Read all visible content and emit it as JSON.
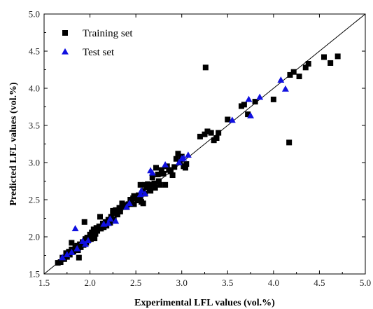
{
  "chart_data": {
    "type": "scatter",
    "xlabel": "Experimental LFL values (vol.%)",
    "ylabel": "Predicted LFL values  (vol.%)",
    "xlim": [
      1.5,
      5.0
    ],
    "ylim": [
      1.5,
      5.0
    ],
    "xticks": [
      "1.5",
      "2.0",
      "2.5",
      "3.0",
      "3.5",
      "4.0",
      "4.5",
      "5.0"
    ],
    "yticks": [
      "1.5",
      "2.0",
      "2.5",
      "3.0",
      "3.5",
      "4.0",
      "4.5",
      "5.0"
    ],
    "grid": false,
    "legend_position": "top-left",
    "reference_line": {
      "from": [
        1.5,
        1.5
      ],
      "to": [
        5.0,
        5.0
      ]
    },
    "series": [
      {
        "name": "Training set",
        "marker": "square",
        "color": "#000000",
        "points": [
          [
            1.65,
            1.65
          ],
          [
            1.68,
            1.66
          ],
          [
            1.7,
            1.72
          ],
          [
            1.72,
            1.7
          ],
          [
            1.74,
            1.78
          ],
          [
            1.75,
            1.73
          ],
          [
            1.77,
            1.8
          ],
          [
            1.78,
            1.76
          ],
          [
            1.8,
            1.92
          ],
          [
            1.8,
            1.83
          ],
          [
            1.82,
            1.8
          ],
          [
            1.84,
            1.86
          ],
          [
            1.86,
            1.88
          ],
          [
            1.87,
            1.82
          ],
          [
            1.88,
            1.72
          ],
          [
            1.89,
            1.9
          ],
          [
            1.9,
            1.86
          ],
          [
            1.92,
            1.93
          ],
          [
            1.93,
            1.89
          ],
          [
            1.94,
            2.2
          ],
          [
            1.95,
            1.97
          ],
          [
            1.96,
            1.92
          ],
          [
            1.97,
            1.99
          ],
          [
            1.98,
            1.95
          ],
          [
            2.0,
            2.03
          ],
          [
            2.01,
            1.97
          ],
          [
            2.02,
            2.06
          ],
          [
            2.03,
            2.0
          ],
          [
            2.04,
            2.1
          ],
          [
            2.05,
            1.98
          ],
          [
            2.06,
            2.04
          ],
          [
            2.07,
            2.12
          ],
          [
            2.08,
            2.08
          ],
          [
            2.1,
            2.14
          ],
          [
            2.11,
            2.27
          ],
          [
            2.12,
            2.11
          ],
          [
            2.14,
            2.18
          ],
          [
            2.15,
            2.13
          ],
          [
            2.17,
            2.2
          ],
          [
            2.18,
            2.15
          ],
          [
            2.2,
            2.23
          ],
          [
            2.22,
            2.19
          ],
          [
            2.23,
            2.27
          ],
          [
            2.25,
            2.32
          ],
          [
            2.26,
            2.24
          ],
          [
            2.28,
            2.36
          ],
          [
            2.3,
            2.3
          ],
          [
            2.32,
            2.39
          ],
          [
            2.33,
            2.34
          ],
          [
            2.35,
            2.45
          ],
          [
            2.36,
            2.41
          ],
          [
            2.38,
            2.43
          ],
          [
            2.4,
            2.4
          ],
          [
            2.42,
            2.44
          ],
          [
            2.44,
            2.5
          ],
          [
            2.45,
            2.46
          ],
          [
            2.47,
            2.52
          ],
          [
            2.48,
            2.44
          ],
          [
            2.5,
            2.52
          ],
          [
            2.52,
            2.49
          ],
          [
            2.53,
            2.56
          ],
          [
            2.55,
            2.52
          ],
          [
            2.56,
            2.47
          ],
          [
            2.58,
            2.62
          ],
          [
            2.6,
            2.58
          ],
          [
            2.6,
            2.7
          ],
          [
            2.62,
            2.67
          ],
          [
            2.63,
            2.71
          ],
          [
            2.65,
            2.65
          ],
          [
            2.66,
            2.62
          ],
          [
            2.67,
            2.7
          ],
          [
            2.68,
            2.8
          ],
          [
            2.7,
            2.72
          ],
          [
            2.71,
            2.66
          ],
          [
            2.72,
            2.93
          ],
          [
            2.74,
            2.84
          ],
          [
            2.75,
            2.75
          ],
          [
            2.76,
            2.7
          ],
          [
            2.78,
            2.9
          ],
          [
            2.8,
            2.85
          ],
          [
            2.82,
            2.7
          ],
          [
            2.84,
            2.95
          ],
          [
            2.86,
            2.9
          ],
          [
            2.88,
            2.88
          ],
          [
            2.9,
            2.83
          ],
          [
            2.92,
            2.94
          ],
          [
            2.94,
            3.05
          ],
          [
            2.96,
            3.12
          ],
          [
            2.98,
            3.0
          ],
          [
            3.0,
            3.08
          ],
          [
            3.02,
            2.95
          ],
          [
            3.04,
            2.93
          ],
          [
            3.05,
            2.98
          ],
          [
            3.2,
            3.35
          ],
          [
            3.25,
            3.38
          ],
          [
            3.28,
            3.42
          ],
          [
            3.32,
            3.4
          ],
          [
            3.35,
            3.3
          ],
          [
            3.38,
            3.33
          ],
          [
            3.4,
            3.4
          ],
          [
            3.5,
            3.58
          ],
          [
            3.65,
            3.76
          ],
          [
            3.68,
            3.78
          ],
          [
            3.72,
            3.65
          ],
          [
            3.8,
            3.82
          ],
          [
            4.0,
            3.85
          ],
          [
            4.18,
            4.18
          ],
          [
            4.22,
            4.22
          ],
          [
            4.28,
            4.16
          ],
          [
            4.35,
            4.28
          ],
          [
            4.38,
            4.33
          ],
          [
            4.55,
            4.42
          ],
          [
            4.62,
            4.34
          ],
          [
            4.7,
            4.43
          ],
          [
            3.26,
            4.28
          ],
          [
            4.17,
            3.27
          ],
          [
            2.55,
            2.7
          ],
          [
            2.58,
            2.45
          ],
          [
            2.25,
            2.35
          ],
          [
            2.48,
            2.55
          ]
        ]
      },
      {
        "name": "Test set",
        "marker": "triangle",
        "color": "#1010e0",
        "points": [
          [
            1.7,
            1.72
          ],
          [
            1.75,
            1.76
          ],
          [
            1.8,
            1.79
          ],
          [
            1.84,
            2.11
          ],
          [
            1.86,
            1.84
          ],
          [
            1.92,
            1.94
          ],
          [
            1.95,
            1.9
          ],
          [
            1.98,
            1.95
          ],
          [
            2.15,
            2.17
          ],
          [
            2.2,
            2.18
          ],
          [
            2.22,
            2.24
          ],
          [
            2.28,
            2.21
          ],
          [
            2.4,
            2.4
          ],
          [
            2.43,
            2.45
          ],
          [
            2.55,
            2.57
          ],
          [
            2.56,
            2.62
          ],
          [
            2.6,
            2.58
          ],
          [
            2.66,
            2.89
          ],
          [
            2.68,
            2.86
          ],
          [
            2.82,
            2.97
          ],
          [
            2.97,
            3.0
          ],
          [
            3.0,
            3.05
          ],
          [
            3.02,
            3.06
          ],
          [
            3.07,
            3.1
          ],
          [
            3.55,
            3.57
          ],
          [
            3.73,
            3.85
          ],
          [
            3.75,
            3.63
          ],
          [
            3.85,
            3.88
          ],
          [
            4.08,
            4.11
          ],
          [
            4.13,
            3.99
          ]
        ]
      }
    ]
  }
}
